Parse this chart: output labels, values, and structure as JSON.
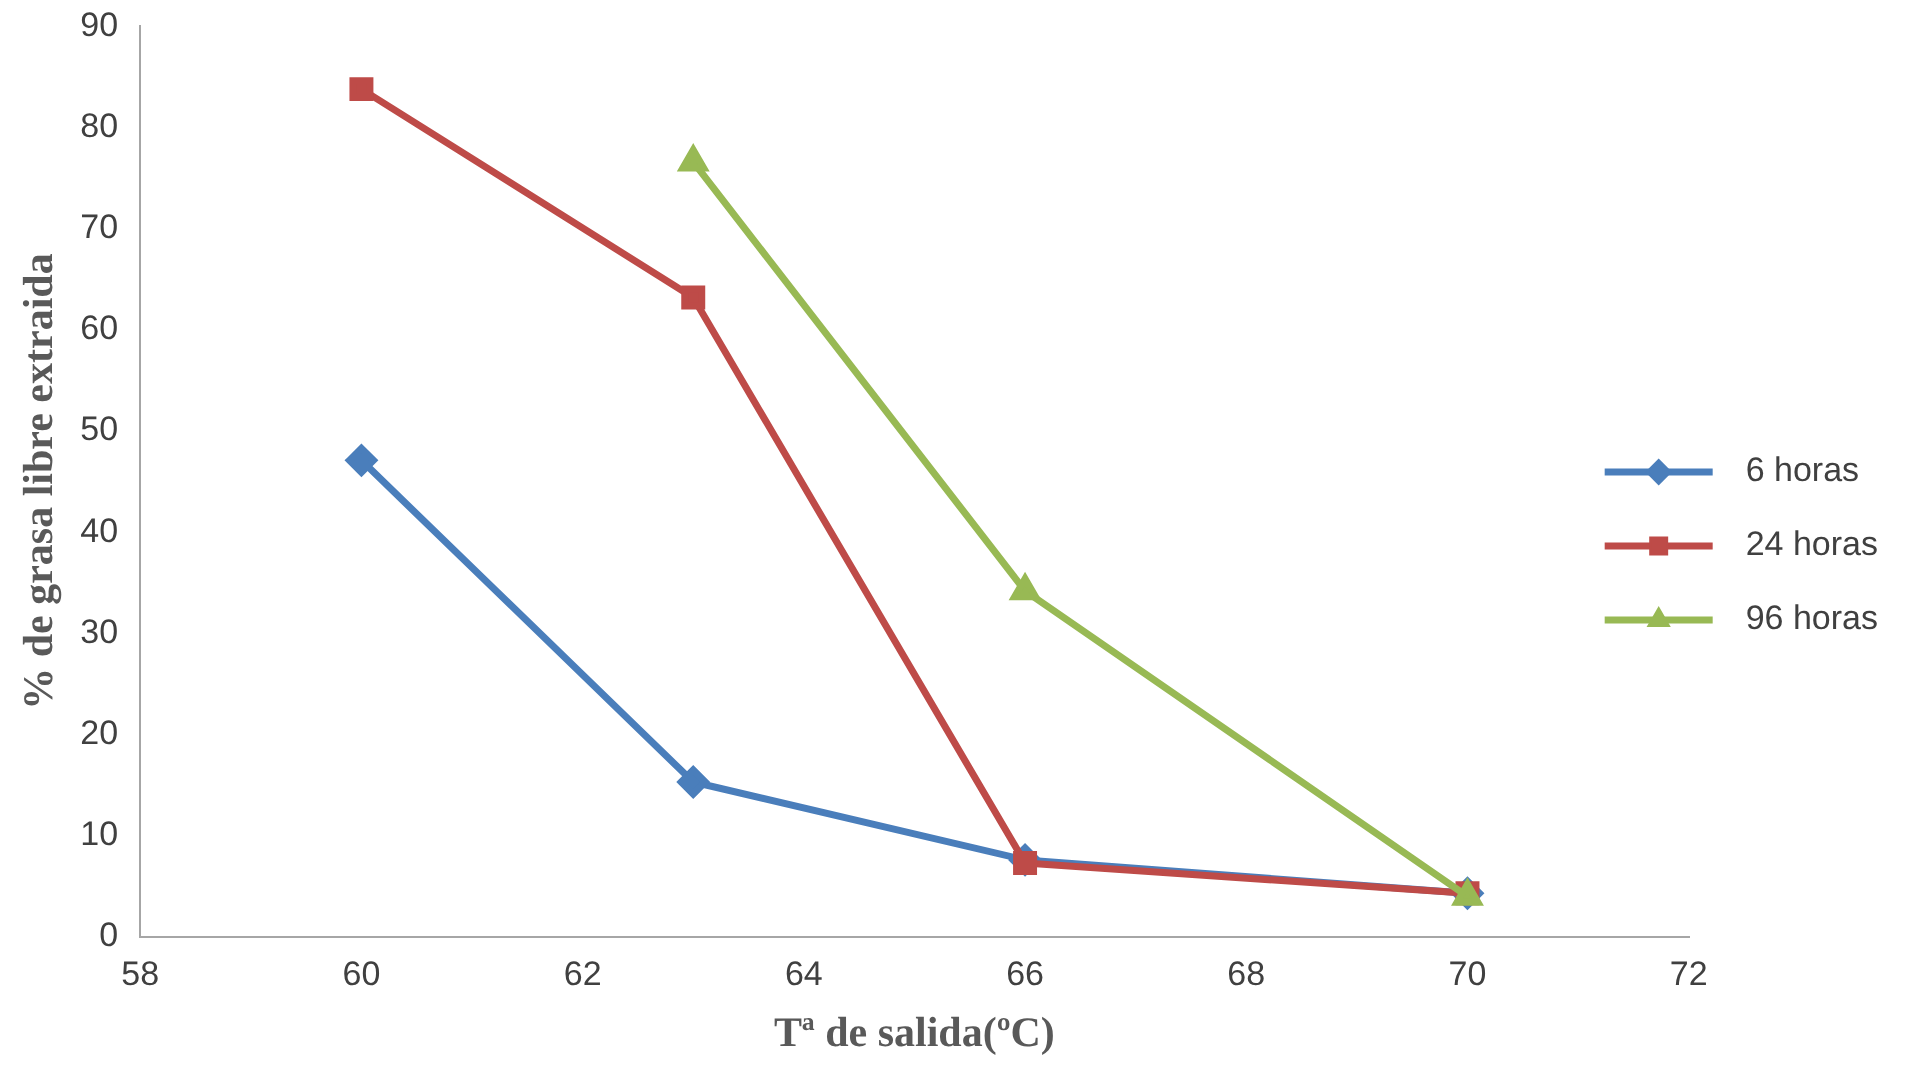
{
  "chart_data": {
    "type": "line",
    "xlabel": "Tª de salida(ºC)",
    "ylabel": "% de grasa libre extraida",
    "xlim": [
      58,
      72
    ],
    "xticks": [
      58,
      60,
      62,
      64,
      66,
      68,
      70,
      72
    ],
    "ylim": [
      0,
      90
    ],
    "yticks": [
      0,
      10,
      20,
      30,
      40,
      50,
      60,
      70,
      80,
      90
    ],
    "grid": false,
    "legend": "right",
    "line_style": "solid",
    "series": [
      {
        "name": "6 horas",
        "color": "#4a7ebb",
        "marker": "diamond",
        "x": [
          60,
          63,
          66,
          70
        ],
        "values": [
          47.1,
          15.3,
          7.6,
          4.3
        ]
      },
      {
        "name": "24 horas",
        "color": "#be4b48",
        "marker": "square",
        "x": [
          60,
          63,
          66,
          70
        ],
        "values": [
          83.8,
          63.2,
          7.3,
          4.3
        ]
      },
      {
        "name": "96 horas",
        "color": "#98b954",
        "marker": "triangle",
        "x": [
          63,
          66,
          70
        ],
        "values": [
          76.6,
          34.2,
          4.0
        ]
      }
    ]
  }
}
